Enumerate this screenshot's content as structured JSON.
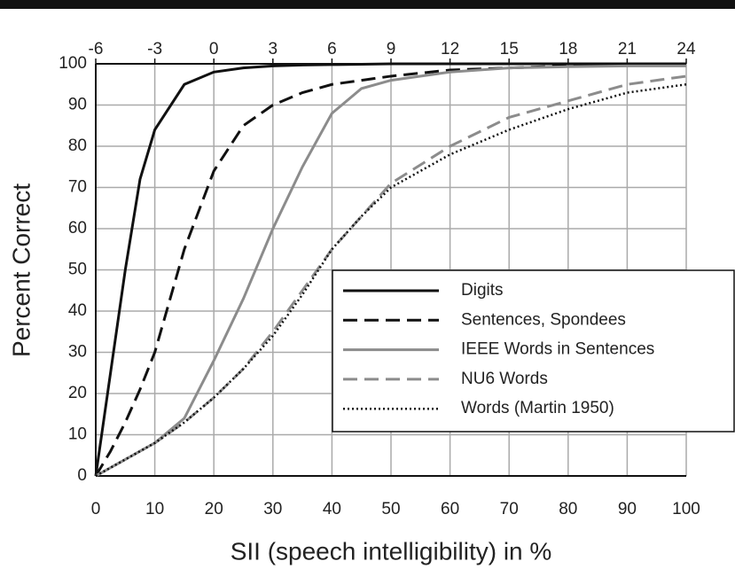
{
  "chart_data": {
    "type": "line",
    "x_label": "SII (speech intelligibility) in %",
    "y_label": "Percent Correct",
    "x": [
      0,
      2.5,
      5,
      7.5,
      10,
      15,
      20,
      25,
      30,
      35,
      40,
      45,
      50,
      60,
      70,
      80,
      90,
      100
    ],
    "series": [
      {
        "name": "Digits",
        "color": "#111111",
        "style": "solid",
        "values": [
          0,
          25,
          50,
          72,
          84,
          95,
          98,
          99,
          99.5,
          99.7,
          99.8,
          99.9,
          100,
          100,
          100,
          100,
          100,
          100
        ]
      },
      {
        "name": "Sentences, Spondees",
        "color": "#111111",
        "style": "dashed",
        "values": [
          0,
          6,
          13,
          21,
          30,
          55,
          74,
          85,
          90,
          93,
          95,
          96,
          97,
          98.5,
          99,
          99.5,
          99.8,
          100
        ]
      },
      {
        "name": "IEEE Words in Sentences",
        "color": "#8c8c8c",
        "style": "solid",
        "values": [
          0,
          2,
          4,
          6,
          8,
          14,
          28,
          43,
          60,
          75,
          88,
          94,
          96,
          98,
          99,
          99.3,
          99.5,
          99.5
        ]
      },
      {
        "name": "NU6 Words",
        "color": "#8c8c8c",
        "style": "dashed",
        "values": [
          0,
          2,
          4,
          6,
          8,
          13,
          19,
          26,
          35,
          45,
          55,
          63,
          71,
          80,
          87,
          91,
          95,
          97
        ]
      },
      {
        "name": "Words (Martin 1950)",
        "color": "#111111",
        "style": "dotted",
        "values": [
          0,
          2,
          4,
          6,
          8,
          13,
          19,
          26,
          34,
          44,
          55,
          63,
          70,
          78,
          84,
          89,
          93,
          95
        ]
      }
    ],
    "xlim": [
      0,
      100
    ],
    "xticks": [
      0,
      10,
      20,
      30,
      40,
      50,
      60,
      70,
      80,
      90,
      100
    ],
    "x2lim": [
      -6,
      24
    ],
    "x2ticks": [
      -6,
      -3,
      0,
      3,
      6,
      9,
      12,
      15,
      18,
      21,
      24
    ],
    "ylim": [
      0,
      100
    ],
    "yticks": [
      0,
      10,
      20,
      30,
      40,
      50,
      60,
      70,
      80,
      90,
      100
    ],
    "grid": true
  }
}
